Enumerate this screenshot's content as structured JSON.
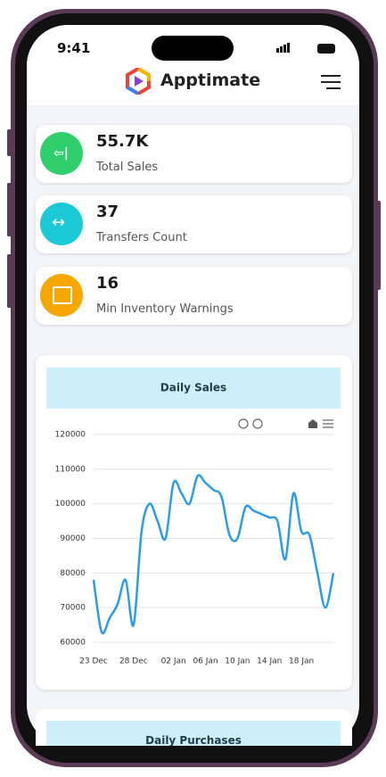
{
  "status_bar": {
    "time": "9:41"
  },
  "header": {
    "brand": "Apptimate"
  },
  "stats": [
    {
      "value": "55.7K",
      "label": "Total Sales"
    },
    {
      "value": "37",
      "label": "Transfers Count"
    },
    {
      "value": "16",
      "label": "Min Inventory Warnings"
    }
  ],
  "chart_data": {
    "type": "line",
    "title": "Daily Sales",
    "categories": [
      "23 Dec",
      null,
      null,
      null,
      null,
      "28 Dec",
      null,
      null,
      null,
      null,
      "02 Jan",
      null,
      null,
      null,
      "06 Jan",
      null,
      null,
      null,
      "10 Jan",
      null,
      null,
      null,
      "14 Jan",
      null,
      null,
      null,
      "18 Jan",
      null,
      null,
      null,
      null
    ],
    "values": [
      78000,
      63000,
      67000,
      71000,
      78000,
      65000,
      92000,
      100000,
      95000,
      90000,
      106000,
      103000,
      100000,
      108000,
      106000,
      104000,
      102000,
      91000,
      90000,
      99000,
      98000,
      97000,
      96000,
      95000,
      84000,
      103000,
      92000,
      91000,
      80000,
      70000,
      80000
    ],
    "color": "#2e9be6",
    "ylim": [
      60000,
      120000
    ],
    "yticks": [
      60000,
      70000,
      80000,
      90000,
      100000,
      110000,
      120000
    ],
    "grid": true
  },
  "next_panel": {
    "title": "Daily Purchases"
  }
}
